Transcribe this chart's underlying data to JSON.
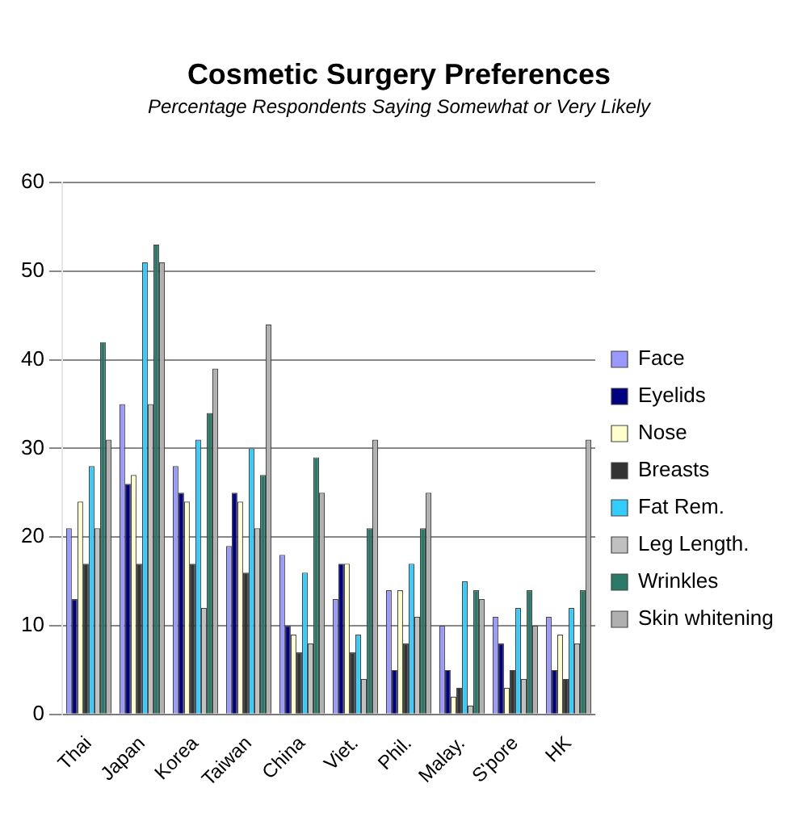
{
  "chart_data": {
    "type": "bar",
    "title": "Cosmetic Surgery Preferences",
    "subtitle": "Percentage Respondents Saying Somewhat or Very Likely",
    "categories": [
      "Thai",
      "Japan",
      "Korea",
      "Taiwan",
      "China",
      "Viet.",
      "Phil.",
      "Malay.",
      "S'pore",
      "HK"
    ],
    "series": [
      {
        "name": "Face",
        "color": "#9999ff",
        "values": [
          21,
          35,
          28,
          19,
          18,
          13,
          14,
          10,
          11,
          11
        ]
      },
      {
        "name": "Eyelids",
        "color": "#000080",
        "values": [
          13,
          26,
          25,
          25,
          10,
          17,
          5,
          5,
          8,
          5
        ]
      },
      {
        "name": "Nose",
        "color": "#ffffcc",
        "values": [
          24,
          27,
          24,
          24,
          9,
          17,
          14,
          2,
          3,
          9
        ]
      },
      {
        "name": "Breasts",
        "color": "#333333",
        "values": [
          17,
          17,
          17,
          16,
          7,
          7,
          8,
          3,
          5,
          4
        ]
      },
      {
        "name": "Fat Rem.",
        "color": "#33ccff",
        "values": [
          28,
          51,
          31,
          30,
          16,
          9,
          17,
          15,
          12,
          12
        ]
      },
      {
        "name": "Leg Length.",
        "color": "#c0c0c0",
        "values": [
          21,
          35,
          12,
          21,
          8,
          4,
          11,
          1,
          4,
          8
        ]
      },
      {
        "name": "Wrinkles",
        "color": "#2a7a6a",
        "values": [
          42,
          53,
          34,
          27,
          29,
          21,
          21,
          14,
          14,
          14
        ]
      },
      {
        "name": "Skin whitening",
        "color": "#b0b0b0",
        "values": [
          31,
          51,
          39,
          44,
          25,
          31,
          25,
          13,
          10,
          31
        ]
      }
    ],
    "ylim": [
      0,
      60
    ],
    "yticks": [
      0,
      10,
      20,
      30,
      40,
      50,
      60
    ],
    "grid": "y",
    "legend": "right"
  }
}
